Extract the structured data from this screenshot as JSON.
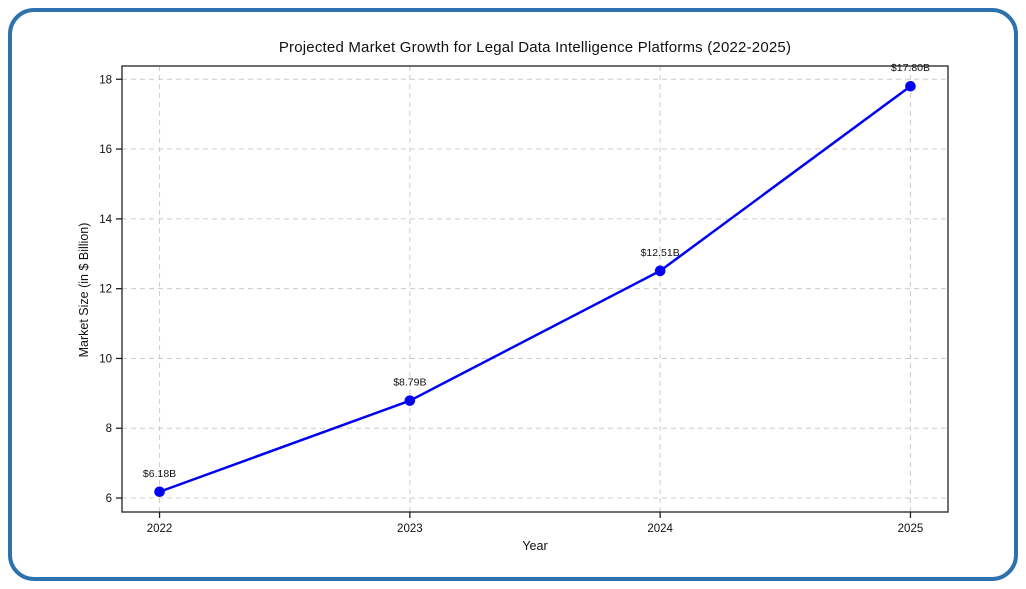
{
  "frame": {
    "border_color": "#2d71ad",
    "background": "#ffffff"
  },
  "chart_data": {
    "type": "line",
    "title": "Projected Market Growth for Legal Data Intelligence Platforms (2022-2025)",
    "xlabel": "Year",
    "ylabel": "Market Size (in $ Billion)",
    "x": [
      2022,
      2023,
      2024,
      2025
    ],
    "series": [
      {
        "name": "Market Size",
        "values": [
          6.18,
          8.79,
          12.51,
          17.8
        ],
        "point_labels": [
          "$6.18B",
          "$8.79B",
          "$12.51B",
          "$17.80B"
        ]
      }
    ],
    "x_tick_labels": [
      "2022",
      "2023",
      "2024",
      "2025"
    ],
    "y_ticks": [
      6,
      8,
      10,
      12,
      14,
      16,
      18
    ],
    "xlim": [
      2021.85,
      2025.15
    ],
    "ylim": [
      5.6,
      18.38
    ],
    "grid": true,
    "grid_style": "dashed",
    "legend": "none",
    "line_color": "#0000f5",
    "marker_color": "#0000f5",
    "grid_color": "#cccccc",
    "axis_color": "#222222"
  }
}
